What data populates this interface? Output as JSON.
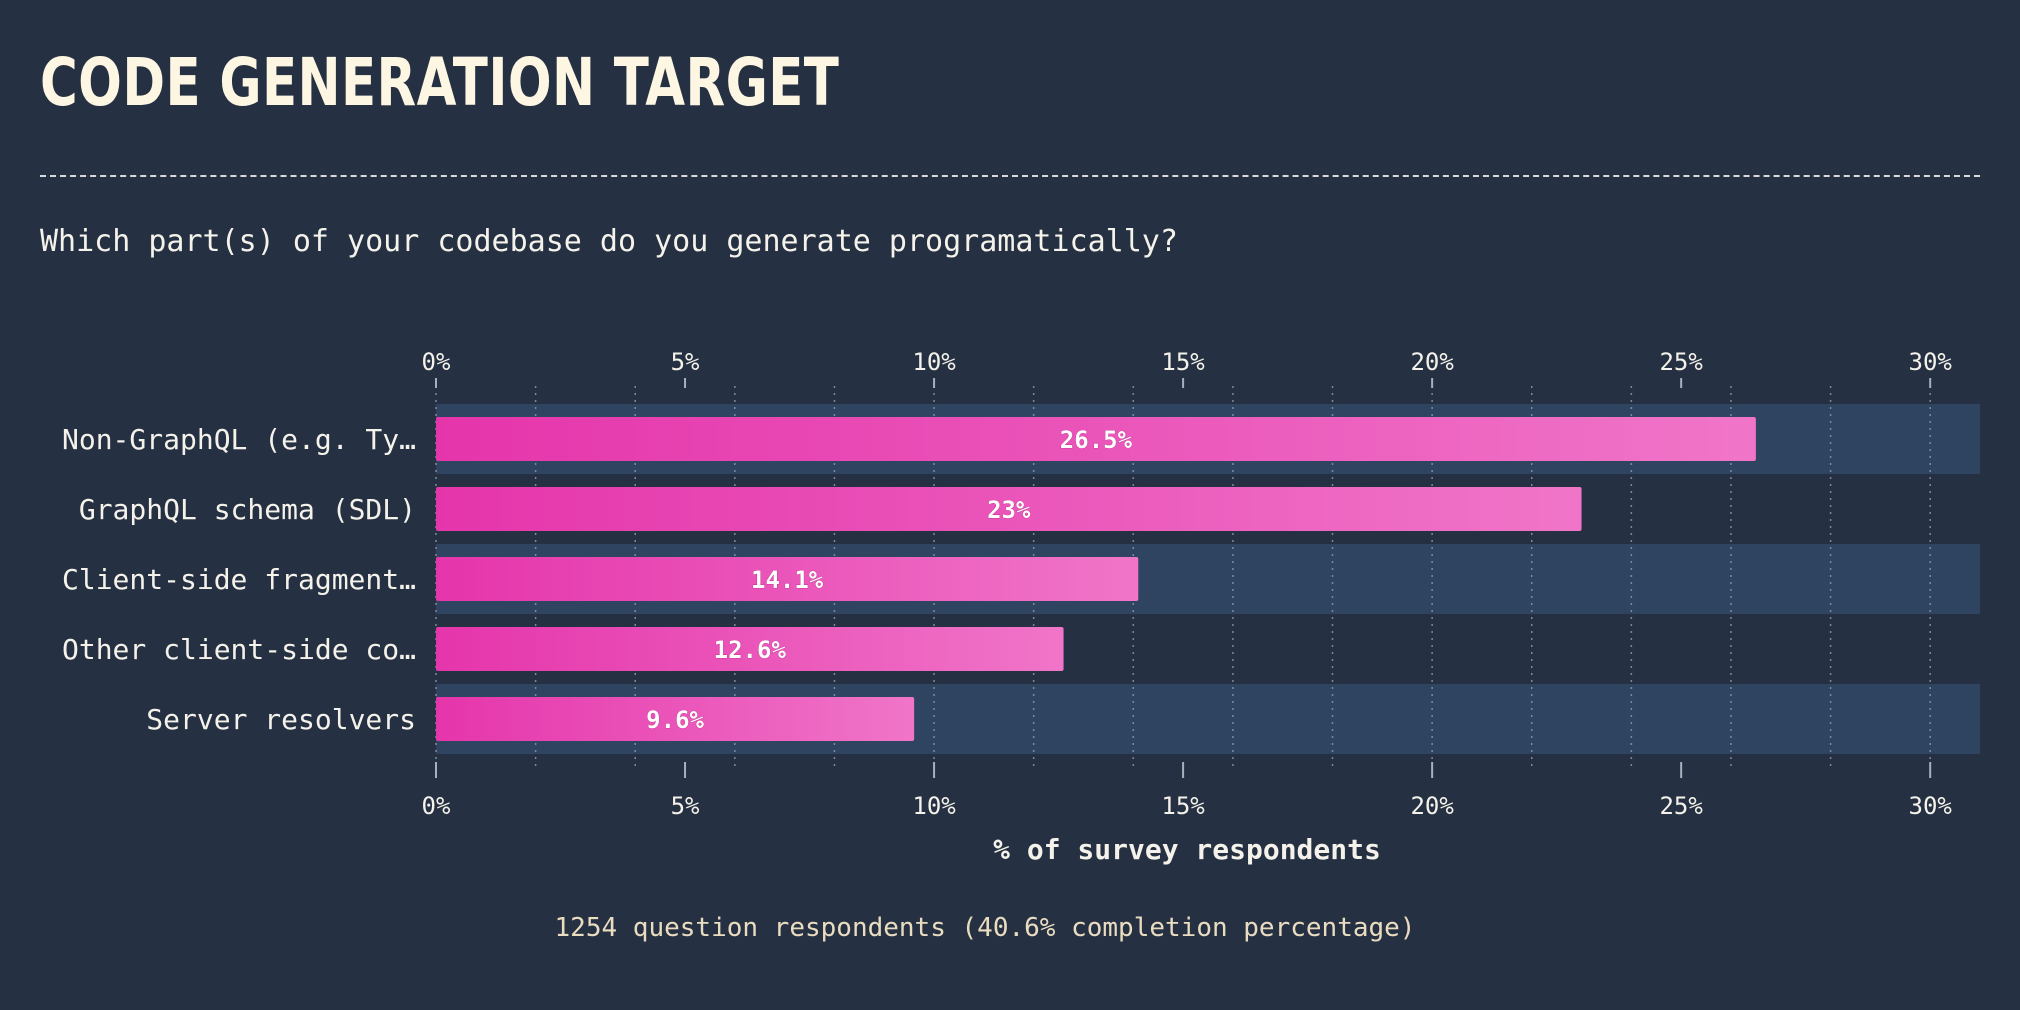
{
  "header": {
    "title": "CODE GENERATION TARGET",
    "question": "Which part(s) of your codebase do you generate programatically?"
  },
  "footer": {
    "note": "1254 question respondents (40.6% completion percentage)"
  },
  "colors": {
    "background": "#253142",
    "band": "#2e4461",
    "bar_start": "#e535ab",
    "bar_end": "#f075c8",
    "text": "#f4f2ea",
    "axis_tick": "#a7b0bc"
  },
  "chart_data": {
    "type": "bar",
    "orientation": "horizontal",
    "categories": [
      "Non-GraphQL (e.g. Ty…",
      "GraphQL schema (SDL)",
      "Client-side fragment…",
      "Other client-side co…",
      "Server resolvers"
    ],
    "values": [
      26.5,
      23,
      14.1,
      12.6,
      9.6
    ],
    "value_labels": [
      "26.5%",
      "23%",
      "14.1%",
      "12.6%",
      "9.6%"
    ],
    "xlabel": "% of survey respondents",
    "ylabel": "",
    "xlim": [
      0,
      31
    ],
    "x_ticks": [
      0,
      5,
      10,
      15,
      20,
      25,
      30
    ],
    "x_tick_labels": [
      "0%",
      "5%",
      "10%",
      "15%",
      "20%",
      "25%",
      "30%"
    ],
    "minor_grid_step": 2,
    "grid": true,
    "axis_labels_top_and_bottom": true
  }
}
